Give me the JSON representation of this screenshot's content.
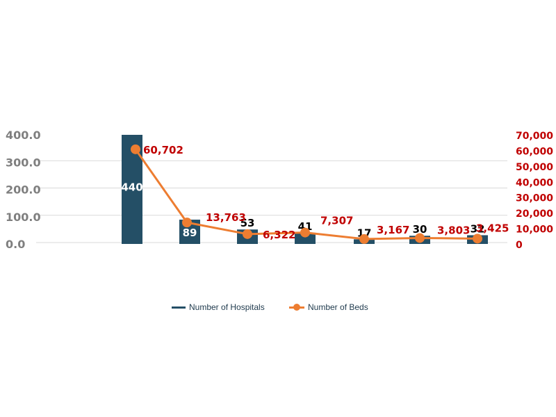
{
  "chart_data": {
    "type": "bar",
    "categories": [
      "",
      "",
      "",
      "",
      "",
      "",
      ""
    ],
    "left_axis": {
      "ticks": [
        "400.0",
        "300.0",
        "200.0",
        "100.0",
        "0.0"
      ],
      "tick_values": [
        400,
        300,
        200,
        100,
        0
      ],
      "ylim": [
        0,
        400
      ]
    },
    "right_axis": {
      "ticks": [
        "70,000",
        "60,000",
        "50,000",
        "40,000",
        "30,000",
        "20,000",
        "10,000",
        "0"
      ],
      "tick_values": [
        70000,
        60000,
        50000,
        40000,
        30000,
        20000,
        10000,
        0
      ],
      "ylim": [
        0,
        70000
      ]
    },
    "series": [
      {
        "name": "Number of Hospitals",
        "type": "bar",
        "axis": "left",
        "color": "#244f66",
        "values": [
          440,
          89,
          53,
          41,
          17,
          30,
          32
        ],
        "labels": [
          "440",
          "89",
          "53",
          "41",
          "17",
          "30",
          "32"
        ]
      },
      {
        "name": "Number of Beds",
        "type": "line",
        "axis": "right",
        "color": "#ed7d31",
        "values": [
          60702,
          13763,
          6322,
          7307,
          3167,
          3803,
          3425
        ],
        "labels": [
          "60,702",
          "13,763",
          "6,322",
          "7,307",
          "3,167",
          "3,803",
          "3,425"
        ]
      }
    ],
    "colors": {
      "bar": "#244f66",
      "line": "#ed7d31",
      "right_axis_text": "#c00000",
      "line_label_text": "#c00000",
      "left_axis_text": "#7f7f7f",
      "grid": "#d9d9d9"
    },
    "grid": true,
    "legend_position": "bottom"
  }
}
